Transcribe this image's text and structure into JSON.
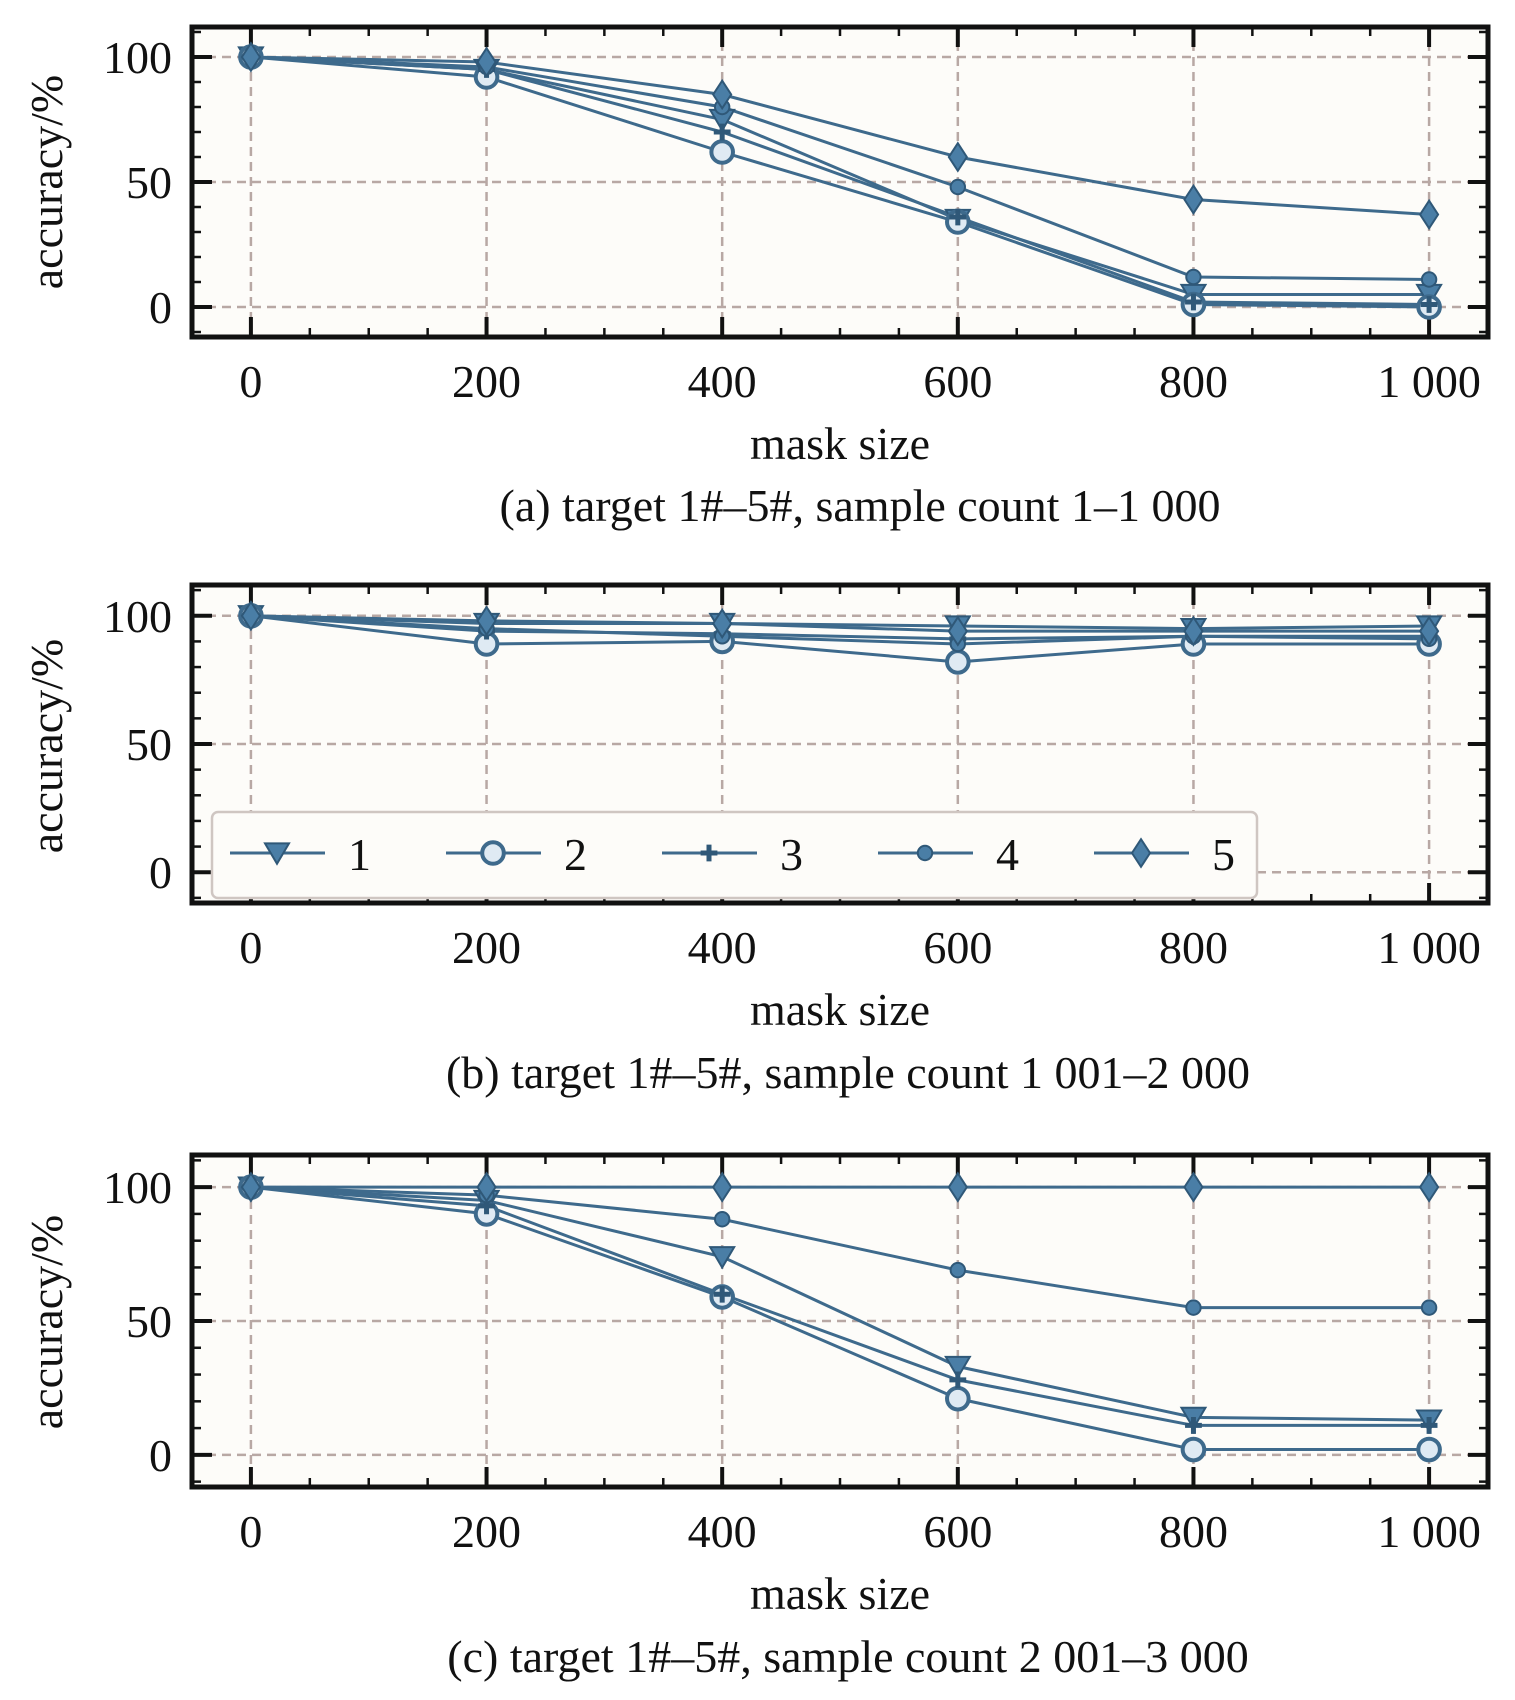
{
  "charts": [
    {
      "type": "line",
      "caption": "(a) target 1#–5#, sample count 1–1 000",
      "xlabel": "mask size",
      "ylabel": "accuracy/%",
      "x": [
        0,
        200,
        400,
        600,
        800,
        1000
      ],
      "x_tick_labels": [
        "0",
        "200",
        "400",
        "600",
        "800",
        "1 000"
      ],
      "y_tick_labels": [
        "0",
        "50",
        "100"
      ],
      "y_ticks": [
        0,
        50,
        100
      ],
      "xlim": [
        -50,
        1050
      ],
      "ylim": [
        -12,
        112
      ],
      "grid": true,
      "legend": false,
      "series": [
        {
          "name": "1",
          "values": [
            100,
            95,
            75,
            35,
            5,
            5
          ]
        },
        {
          "name": "2",
          "values": [
            100,
            92,
            62,
            34,
            1,
            0
          ]
        },
        {
          "name": "3",
          "values": [
            100,
            95,
            70,
            36,
            2,
            1
          ]
        },
        {
          "name": "4",
          "values": [
            100,
            96,
            80,
            48,
            12,
            11
          ]
        },
        {
          "name": "5",
          "values": [
            100,
            98,
            85,
            60,
            43,
            37
          ]
        }
      ]
    },
    {
      "type": "line",
      "caption": "(b) target 1#–5#, sample count 1 001–2 000",
      "xlabel": "mask size",
      "ylabel": "accuracy/%",
      "x": [
        0,
        200,
        400,
        600,
        800,
        1000
      ],
      "x_tick_labels": [
        "0",
        "200",
        "400",
        "600",
        "800",
        "1 000"
      ],
      "y_tick_labels": [
        "0",
        "50",
        "100"
      ],
      "y_ticks": [
        0,
        50,
        100
      ],
      "xlim": [
        -50,
        1050
      ],
      "ylim": [
        -12,
        112
      ],
      "grid": true,
      "legend": true,
      "legend_position": "lower-left",
      "series": [
        {
          "name": "1",
          "values": [
            100,
            97,
            97,
            96,
            95,
            96
          ]
        },
        {
          "name": "2",
          "values": [
            100,
            89,
            90,
            82,
            89,
            89
          ]
        },
        {
          "name": "3",
          "values": [
            100,
            94,
            93,
            91,
            92,
            92
          ]
        },
        {
          "name": "4",
          "values": [
            100,
            95,
            92,
            89,
            92,
            91
          ]
        },
        {
          "name": "5",
          "values": [
            100,
            98,
            97,
            94,
            94,
            94
          ]
        }
      ]
    },
    {
      "type": "line",
      "caption": "(c) target 1#–5#, sample count 2 001–3 000",
      "xlabel": "mask size",
      "ylabel": "accuracy/%",
      "x": [
        0,
        200,
        400,
        600,
        800,
        1000
      ],
      "x_tick_labels": [
        "0",
        "200",
        "400",
        "600",
        "800",
        "1 000"
      ],
      "y_tick_labels": [
        "0",
        "50",
        "100"
      ],
      "y_ticks": [
        0,
        50,
        100
      ],
      "xlim": [
        -50,
        1050
      ],
      "ylim": [
        -12,
        112
      ],
      "grid": true,
      "legend": false,
      "series": [
        {
          "name": "1",
          "values": [
            100,
            95,
            74,
            33,
            14,
            13
          ]
        },
        {
          "name": "2",
          "values": [
            100,
            90,
            59,
            21,
            2,
            2
          ]
        },
        {
          "name": "3",
          "values": [
            100,
            93,
            60,
            28,
            11,
            11
          ]
        },
        {
          "name": "4",
          "values": [
            100,
            97,
            88,
            69,
            55,
            55
          ]
        },
        {
          "name": "5",
          "values": [
            100,
            100,
            100,
            100,
            100,
            100
          ]
        }
      ]
    }
  ],
  "markers": [
    "triangle-down",
    "circle-open",
    "plus",
    "circle",
    "diamond"
  ]
}
